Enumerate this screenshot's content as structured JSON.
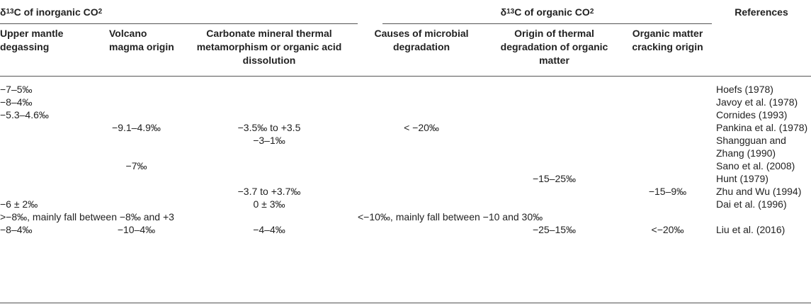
{
  "header": {
    "groups": [
      {
        "parts": [
          "δ",
          "13",
          "C of inorganic CO",
          "2"
        ]
      },
      {
        "parts": [
          "δ",
          "13",
          "C of organic CO",
          "2"
        ]
      }
    ],
    "references": "References",
    "columns": [
      "Upper mantle degassing",
      "Volcano magma origin",
      "Carbonate mineral thermal metamorphism or organic acid dissolution",
      "Causes of microbial degradation",
      "Origin of thermal degradation of organic matter",
      "Organic matter cracking origin"
    ]
  },
  "table": {
    "rows": [
      [
        "−7–5‰",
        null,
        null,
        null,
        null,
        null,
        "Hoefs (1978)"
      ],
      [
        "−8–4‰",
        null,
        null,
        null,
        null,
        null,
        "Javoy et al. (1978)"
      ],
      [
        "−5.3–4.6‰",
        null,
        null,
        null,
        null,
        null,
        "Cornides (1993)"
      ],
      [
        null,
        "−9.1–4.9‰",
        "−3.5‰ to +3.5",
        "< −20‰",
        null,
        null,
        "Pankina et al. (1978)"
      ],
      [
        null,
        null,
        "−3–1‰",
        null,
        null,
        null,
        "Shangguan and Zhang (1990)"
      ],
      [
        null,
        "−7‰",
        null,
        null,
        null,
        null,
        "Sano et al. (2008)"
      ],
      [
        null,
        null,
        null,
        null,
        "−15–25‰",
        null,
        "Hunt (1979)"
      ],
      [
        null,
        null,
        "−3.7 to +3.7‰",
        null,
        null,
        "−15–9‰",
        "Zhu and Wu (1994)"
      ],
      [
        "−6 ± 2‰",
        null,
        "0 ± 3‰",
        null,
        null,
        null,
        "Dai et al. (1996)"
      ],
      [
        ">−8‰, mainly fall between −8‰ and +3",
        null,
        null,
        "<−10‰, mainly fall between −10 and 30‰",
        null,
        null,
        null
      ],
      [
        "−8–4‰",
        "−10–4‰",
        "−4–4‰",
        null,
        "−25–15‰",
        "<−20‰",
        "Liu et al. (2016)"
      ]
    ]
  }
}
